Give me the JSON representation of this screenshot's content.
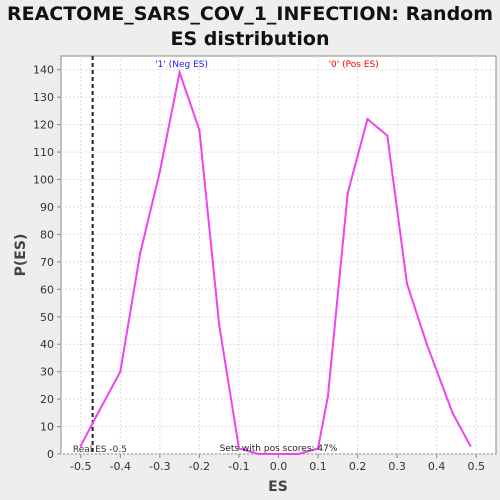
{
  "chart_data": {
    "type": "line",
    "title_line1": "REACTOME_SARS_COV_1_INFECTION: Random",
    "title_line2": "ES distribution",
    "xlabel": "ES",
    "ylabel": "P(ES)",
    "xlim": [
      -0.55,
      0.55
    ],
    "ylim": [
      0,
      145
    ],
    "xticks": [
      -0.5,
      -0.4,
      -0.3,
      -0.2,
      -0.1,
      0.0,
      0.1,
      0.2,
      0.3,
      0.4,
      0.5
    ],
    "yticks": [
      0,
      10,
      20,
      30,
      40,
      50,
      60,
      70,
      80,
      90,
      100,
      110,
      120,
      130,
      140
    ],
    "x": [
      -0.5,
      -0.46,
      -0.4,
      -0.35,
      -0.3,
      -0.25,
      -0.2,
      -0.15,
      -0.1,
      -0.05,
      0.0,
      0.05,
      0.1,
      0.125,
      0.175,
      0.225,
      0.275,
      0.325,
      0.375,
      0.44,
      0.485
    ],
    "series": [
      {
        "values": [
          3,
          14,
          30,
          73,
          103,
          139,
          118,
          47,
          2,
          0,
          0,
          0,
          2,
          21,
          95,
          122,
          116,
          62,
          40,
          15,
          3
        ],
        "color": "#ee44ee"
      }
    ],
    "real_es": -0.47,
    "real_es_label": "Real ES -0.5",
    "neg_label": "'1' (Neg ES)",
    "neg_label_color": "#2020ff",
    "pos_label": "'0' (Pos ES)",
    "pos_label_color": "#ff0000",
    "footnote": "Sets with pos scores: 47%",
    "grid": true
  }
}
